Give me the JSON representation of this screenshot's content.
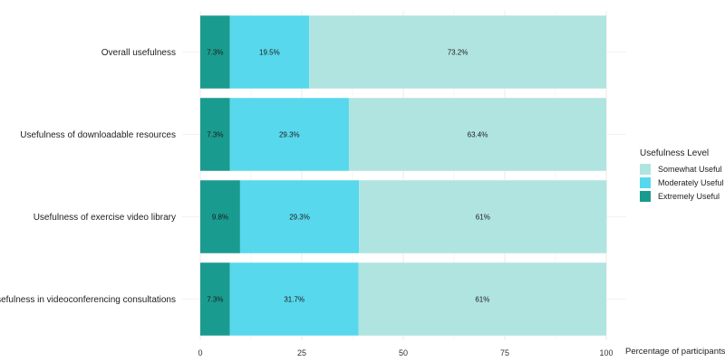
{
  "chart_data": {
    "type": "bar",
    "orientation": "horizontal",
    "stacked": true,
    "categories": [
      "Overall usefulness",
      "Usefulness of downloadable resources",
      "Usefulness of exercise video library",
      "Usefulness in videoconferencing consultations"
    ],
    "series": [
      {
        "name": "Extremely Useful",
        "color": "#1a9b8f",
        "values": [
          7.3,
          7.3,
          9.8,
          7.3
        ],
        "labels": [
          "7.3%",
          "7.3%",
          "9.8%",
          "7.3%"
        ]
      },
      {
        "name": "Moderately Useful",
        "color": "#57d8ec",
        "values": [
          19.5,
          29.3,
          29.3,
          31.7
        ],
        "labels": [
          "19.5%",
          "29.3%",
          "29.3%",
          "31.7%"
        ]
      },
      {
        "name": "Somewhat Useful",
        "color": "#b0e4e0",
        "values": [
          73.2,
          63.4,
          61,
          61
        ],
        "labels": [
          "73.2%",
          "63.4%",
          "61%",
          "61%"
        ]
      }
    ],
    "xlabel": "Percentage of participants",
    "xlim": [
      0,
      100
    ],
    "xticks": [
      "0",
      "25",
      "50",
      "75",
      "100"
    ],
    "tick_values": [
      0,
      25,
      50,
      75,
      100
    ],
    "grid": true,
    "legend": {
      "title": "Usefulness Level",
      "placement": "right",
      "order": [
        "Somewhat Useful",
        "Moderately Useful",
        "Extremely Useful"
      ]
    }
  }
}
